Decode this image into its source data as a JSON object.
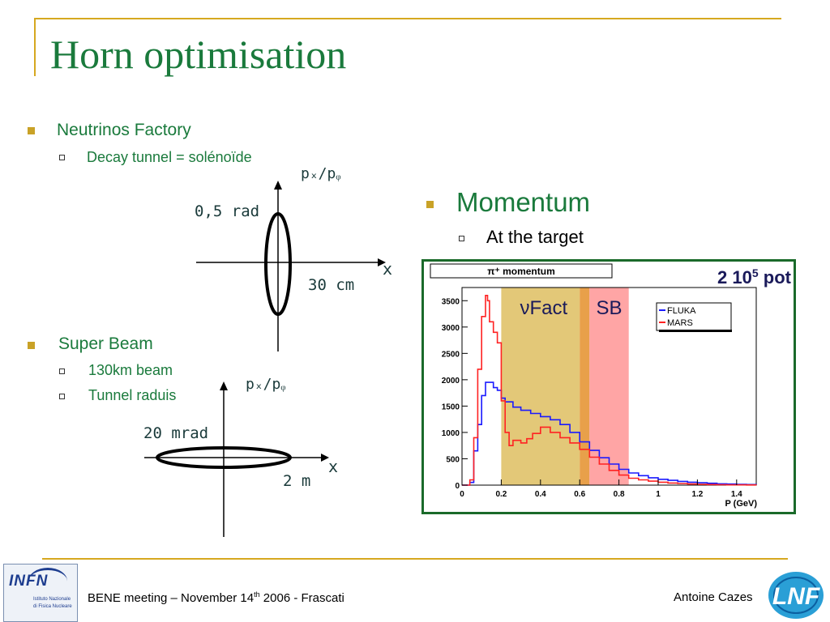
{
  "slide": {
    "title": "Horn optimisation"
  },
  "left": {
    "nf_title": "Neutrinos Factory",
    "nf_sub": "Decay tunnel = solénoïde",
    "sb_title": "Super Beam",
    "sb_sub1": "130km beam",
    "sb_sub2": "Tunnel raduis"
  },
  "diagram1": {
    "y_label": "pₓ/pᵩ",
    "angle_label": "0,5 rad",
    "x_label": "x",
    "length_label": "30 cm"
  },
  "diagram2": {
    "y_label": "pₓ/pᵩ",
    "angle_label": "20 mrad",
    "x_label": "x",
    "length_label": "2 m"
  },
  "right": {
    "title": "Momentum",
    "sub": "At the target"
  },
  "chart_data": {
    "type": "line",
    "title": "π⁺ momentum",
    "pot_label_base": "2 10",
    "pot_label_exp": "5",
    "pot_label_unit": " pot",
    "xlabel": "P (GeV)",
    "ylabel": "",
    "xlim": [
      0,
      1.5
    ],
    "ylim": [
      0,
      3750
    ],
    "x_ticks": [
      "0",
      "0.2",
      "0.4",
      "0.6",
      "0.8",
      "1",
      "1.2",
      "1.4"
    ],
    "x_tick_values": [
      0,
      0.2,
      0.4,
      0.6,
      0.8,
      1.0,
      1.2,
      1.4
    ],
    "y_ticks": [
      "0",
      "500",
      "1000",
      "1500",
      "2000",
      "2500",
      "3000",
      "3500"
    ],
    "y_tick_values": [
      0,
      500,
      1000,
      1500,
      2000,
      2500,
      3000,
      3500
    ],
    "regions": [
      {
        "label": "νFact",
        "from": 0.2,
        "to": 0.6,
        "color": "#e3c878"
      },
      {
        "label": "",
        "from": 0.6,
        "to": 0.65,
        "color": "#e8a04a"
      },
      {
        "label": "SB",
        "from": 0.65,
        "to": 0.85,
        "color": "#ffa5a5"
      }
    ],
    "legend": "top-right",
    "series": [
      {
        "name": "FLUKA",
        "color": "#1a1aff",
        "x": [
          0.0,
          0.04,
          0.06,
          0.08,
          0.1,
          0.12,
          0.14,
          0.16,
          0.18,
          0.2,
          0.22,
          0.26,
          0.3,
          0.35,
          0.4,
          0.45,
          0.5,
          0.55,
          0.6,
          0.65,
          0.7,
          0.75,
          0.8,
          0.85,
          0.9,
          0.95,
          1.0,
          1.05,
          1.1,
          1.15,
          1.2,
          1.25,
          1.3,
          1.35,
          1.4,
          1.45,
          1.5
        ],
        "y": [
          0,
          50,
          650,
          1150,
          1700,
          1950,
          1950,
          1850,
          1800,
          1650,
          1580,
          1480,
          1420,
          1360,
          1300,
          1240,
          1150,
          1000,
          820,
          660,
          520,
          400,
          300,
          230,
          180,
          140,
          110,
          90,
          70,
          55,
          45,
          35,
          25,
          20,
          15,
          10,
          5
        ]
      },
      {
        "name": "MARS",
        "color": "#ff2222",
        "x": [
          0.0,
          0.04,
          0.06,
          0.08,
          0.1,
          0.12,
          0.13,
          0.14,
          0.16,
          0.18,
          0.2,
          0.22,
          0.24,
          0.26,
          0.3,
          0.33,
          0.36,
          0.4,
          0.45,
          0.5,
          0.55,
          0.6,
          0.65,
          0.7,
          0.75,
          0.8,
          0.85,
          0.9,
          0.95,
          1.0,
          1.05,
          1.1,
          1.15,
          1.2,
          1.25,
          1.3,
          1.35,
          1.4,
          1.45,
          1.5
        ],
        "y": [
          0,
          100,
          900,
          2200,
          3200,
          3600,
          3500,
          3100,
          2900,
          2700,
          1600,
          1000,
          750,
          850,
          800,
          880,
          980,
          1100,
          1000,
          900,
          800,
          680,
          530,
          400,
          280,
          190,
          130,
          100,
          75,
          55,
          40,
          30,
          22,
          15,
          10,
          8,
          5,
          4,
          3,
          2
        ]
      }
    ]
  },
  "footer": {
    "meeting": "BENE meeting – November 14",
    "meeting_sup": "th",
    "meeting_tail": " 2006 - Frascati",
    "author": "Antoine Cazes",
    "logo_left_text": "INFN",
    "logo_left_sub1": "Istituto Nazionale",
    "logo_left_sub2": "di Fisica Nucleare",
    "logo_right_text": "LNF"
  },
  "colors": {
    "title_green": "#1a7a3c",
    "gold": "#d6a820",
    "frame_green": "#1a6a2a"
  }
}
